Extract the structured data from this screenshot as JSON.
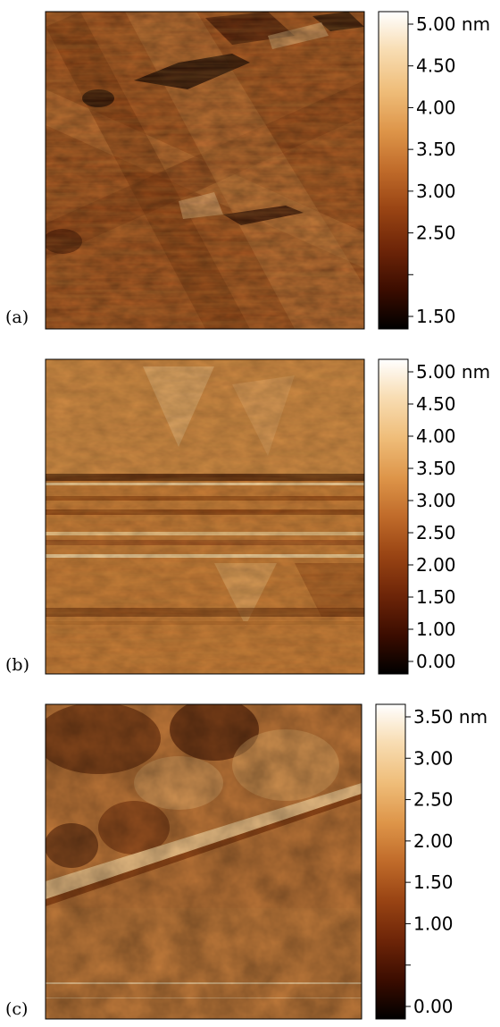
{
  "colormap": [
    "#000000",
    "#3a0c00",
    "#6e2508",
    "#9a4514",
    "#c06b2a",
    "#dd9448",
    "#efbd79",
    "#f8ddb3",
    "#ffffff"
  ],
  "panels": [
    {
      "label": "(a)",
      "image_description": "AFM topography: cross-hatched grooves with dark depressions along upper edge",
      "colorbar_ticks": [
        "5.00 nm",
        "4.50",
        "4.00",
        "3.50",
        "3.00",
        "2.50",
        "",
        "1.50"
      ]
    },
    {
      "label": "(b)",
      "image_description": "AFM topography: terraces with horizontal streak lines and triangular features",
      "colorbar_ticks": [
        "5.00 nm",
        "4.50",
        "4.00",
        "3.50",
        "3.00",
        "2.50",
        "2.00",
        "1.50",
        "1.00",
        "0.00"
      ]
    },
    {
      "label": "(c)",
      "image_description": "AFM topography: diagonal bright step across a mottled surface",
      "colorbar_ticks": [
        "3.50 nm",
        "3.00",
        "2.50",
        "2.00",
        "1.50",
        "1.00",
        "",
        "0.00"
      ]
    }
  ]
}
